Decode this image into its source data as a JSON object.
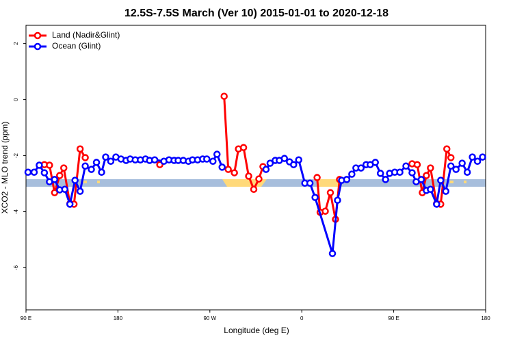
{
  "chart_data": {
    "type": "line",
    "title": "12.5S-7.5S March (Ver 10)   2015-01-01 to 2020-12-18",
    "x_label": "Longitude (deg E)",
    "y_label": "XCO2 - MLO trend (ppm)",
    "xlim": [
      90,
      540
    ],
    "xticks": [
      {
        "value": 90,
        "label": "90 E"
      },
      {
        "value": 180,
        "label": "180"
      },
      {
        "value": 270,
        "label": "90 W"
      },
      {
        "value": 360,
        "label": "0"
      },
      {
        "value": 450,
        "label": "90 E"
      },
      {
        "value": 540,
        "label": "180"
      }
    ],
    "ylim": [
      -7.5,
      2.65
    ],
    "yticks": [
      2,
      0,
      -2,
      -4,
      -6
    ],
    "legend": "top-left",
    "series": [
      {
        "name": "Land (Nadir&Glint)",
        "color": "#ff0000",
        "x": [
          108,
          113,
          118,
          123,
          127,
          133,
          137,
          143,
          148,
          null,
          221,
          null,
          284,
          288,
          294,
          298,
          303,
          308,
          313,
          318,
          322,
          null,
          375,
          378,
          383,
          388,
          393,
          397,
          null,
          468,
          473,
          478,
          482,
          486,
          492,
          496,
          502,
          506
        ],
        "values": [
          -2.32,
          -2.34,
          -3.32,
          -2.71,
          -2.44,
          -3.71,
          -3.73,
          -1.76,
          -2.07,
          null,
          -2.32,
          null,
          0.12,
          -2.49,
          -2.61,
          -1.76,
          -1.71,
          -2.73,
          -3.2,
          -2.83,
          -2.39,
          null,
          -2.78,
          -4.02,
          -3.98,
          -3.32,
          -4.27,
          -2.85,
          null,
          -2.29,
          -2.32,
          -3.32,
          -2.71,
          -2.44,
          -3.71,
          -3.73,
          -1.76,
          -2.07
        ]
      },
      {
        "name": "Ocean (Glint)",
        "color": "#0000ff",
        "x": [
          92,
          98,
          103,
          108,
          113,
          118,
          123,
          128,
          133,
          138,
          143,
          148,
          154,
          159,
          164,
          168,
          173,
          178,
          183,
          188,
          192,
          197,
          202,
          207,
          211,
          216,
          225,
          230,
          235,
          239,
          244,
          249,
          253,
          258,
          263,
          267,
          273,
          277,
          282,
          null,
          325,
          329,
          334,
          338,
          343,
          348,
          352,
          357,
          363,
          368,
          373,
          390,
          395,
          399,
          404,
          409,
          413,
          418,
          423,
          427,
          432,
          437,
          442,
          446,
          451,
          456,
          462,
          468,
          472,
          477,
          482,
          486,
          492,
          496,
          501,
          506,
          511,
          517,
          522,
          527,
          532,
          537
        ],
        "values": [
          -2.59,
          -2.59,
          -2.34,
          -2.61,
          -2.93,
          -2.85,
          -3.22,
          -3.2,
          -3.73,
          -2.88,
          -3.27,
          -2.37,
          -2.49,
          -2.24,
          -2.59,
          -2.05,
          -2.2,
          -2.05,
          -2.12,
          -2.17,
          -2.12,
          -2.15,
          -2.15,
          -2.12,
          -2.17,
          -2.15,
          -2.2,
          -2.15,
          -2.17,
          -2.17,
          -2.17,
          -2.2,
          -2.15,
          -2.15,
          -2.12,
          -2.12,
          -2.2,
          -1.95,
          -2.41,
          null,
          -2.49,
          -2.27,
          -2.17,
          -2.17,
          -2.1,
          -2.22,
          -2.32,
          -2.15,
          -2.98,
          -2.98,
          -3.49,
          -5.49,
          -3.59,
          -2.88,
          -2.85,
          -2.66,
          -2.44,
          -2.44,
          -2.32,
          -2.32,
          -2.24,
          -2.63,
          -2.85,
          -2.63,
          -2.59,
          -2.59,
          -2.37,
          -2.61,
          -2.93,
          -2.85,
          -3.24,
          -3.2,
          -3.73,
          -2.88,
          -3.27,
          -2.37,
          -2.49,
          -2.27,
          -2.59,
          -2.05,
          -2.2,
          -2.05
        ]
      }
    ]
  }
}
